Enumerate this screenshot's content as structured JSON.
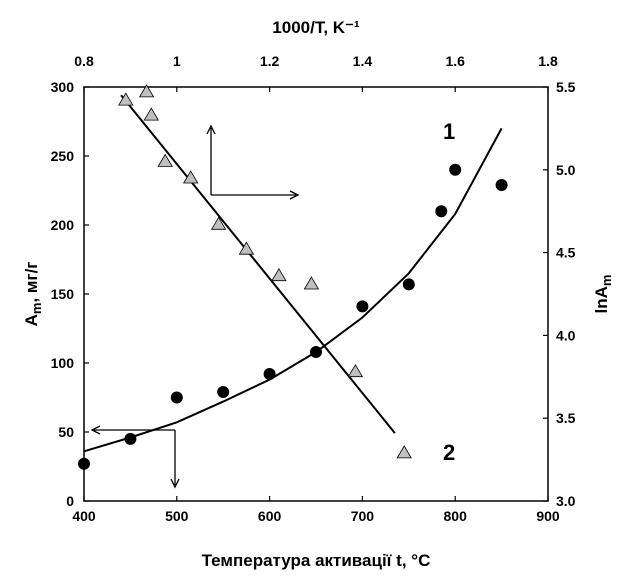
{
  "chart_data": {
    "type": "scatter",
    "xlabel_bottom": "Температура активації t, °C",
    "xlabel_top": "1000/T, K⁻¹",
    "ylabel_left_main": "A",
    "ylabel_left_sub": "m",
    "ylabel_left_rest": ", мг/г",
    "ylabel_right_main": "lnA",
    "ylabel_right_sub": "m",
    "xlim_bottom": [
      400,
      900
    ],
    "xlim_top": [
      0.8,
      1.8
    ],
    "ylim_left": [
      0,
      300
    ],
    "ylim_right": [
      3.0,
      5.5
    ],
    "xticks_bottom": [
      "400",
      "500",
      "600",
      "700",
      "800",
      "900"
    ],
    "xticks_top": [
      "0.8",
      "1",
      "1.2",
      "1.4",
      "1.6",
      "1.8"
    ],
    "yticks_left": [
      "0",
      "50",
      "100",
      "150",
      "200",
      "250",
      "300"
    ],
    "yticks_right": [
      "3.0",
      "3.5",
      "4.0",
      "4.5",
      "5.0",
      "5.5"
    ],
    "grid": false,
    "series": [
      {
        "name": "1",
        "marker": "circle",
        "color": "#000000",
        "axes": "bottom-left",
        "x": [
          400,
          450,
          500,
          550,
          600,
          650,
          700,
          750,
          785,
          800,
          850
        ],
        "y": [
          27,
          45,
          75,
          79,
          92,
          108,
          141,
          157,
          210,
          240,
          229
        ],
        "fit_curve": {
          "x": [
            400,
            450,
            500,
            550,
            600,
            650,
            700,
            750,
            800,
            850
          ],
          "y": [
            36,
            46,
            57,
            72,
            88,
            108,
            133,
            165,
            208,
            270
          ]
        }
      },
      {
        "name": "2",
        "marker": "triangle",
        "color": "#bfbfbf",
        "axes": "top-right",
        "x": [
          0.89,
          0.935,
          0.945,
          0.975,
          1.03,
          1.09,
          1.15,
          1.22,
          1.29,
          1.385,
          1.49
        ],
        "y": [
          5.42,
          5.47,
          5.33,
          5.05,
          4.95,
          4.67,
          4.52,
          4.36,
          4.31,
          3.78,
          3.29
        ],
        "fit_line": {
          "x": [
            0.88,
            1.47
          ],
          "y": [
            5.45,
            3.41
          ]
        }
      }
    ],
    "annotations": [
      {
        "text": "1",
        "near": "upper-right of curve 1"
      },
      {
        "text": "2",
        "near": "lower-right of line 2"
      }
    ]
  }
}
